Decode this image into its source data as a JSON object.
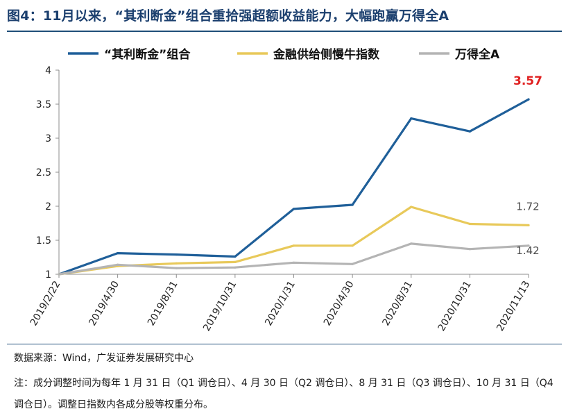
{
  "title": "图4：11月以来，“其利断金”组合重拾强超额收益能力，大幅跑赢万得全A",
  "source": "数据来源：Wind，广发证券发展研究中心",
  "note": "注：成分调整时间为每年 1 月 31 日（Q1 调仓日）、4 月 30 日（Q2 调仓日）、8 月 31 日（Q3 调仓日）、10 月 31 日（Q4 调仓日）。调整日指数内各成分股等权重分布。",
  "chart_data": {
    "type": "line",
    "title": "",
    "xlabel": "",
    "ylabel": "",
    "categories": [
      "2019/2/22",
      "2019/4/30",
      "2019/8/31",
      "2019/10/31",
      "2020/1/31",
      "2020/4/30",
      "2020/8/31",
      "2020/10/31",
      "2020/11/13"
    ],
    "ylim": [
      1,
      4
    ],
    "yticks": [
      "1",
      "1.5",
      "2",
      "2.5",
      "3",
      "3.5",
      "4"
    ],
    "grid": false,
    "legend_position": "top",
    "series": [
      {
        "name": "“其利断金”组合",
        "color": "#1f5f99",
        "values": [
          1.0,
          1.31,
          1.29,
          1.26,
          1.96,
          2.02,
          3.29,
          3.1,
          3.57
        ],
        "end_label": "3.57",
        "end_label_color": "#e02020"
      },
      {
        "name": "金融供给侧慢牛指数",
        "color": "#e8c95a",
        "values": [
          1.0,
          1.12,
          1.16,
          1.18,
          1.42,
          1.42,
          1.99,
          1.74,
          1.72
        ],
        "end_label": "1.72",
        "end_label_color": "#4a4a4a"
      },
      {
        "name": "万得全A",
        "color": "#b4b4b4",
        "values": [
          1.0,
          1.14,
          1.09,
          1.1,
          1.17,
          1.15,
          1.45,
          1.37,
          1.42
        ],
        "end_label": "1.42",
        "end_label_color": "#4a4a4a"
      }
    ]
  }
}
